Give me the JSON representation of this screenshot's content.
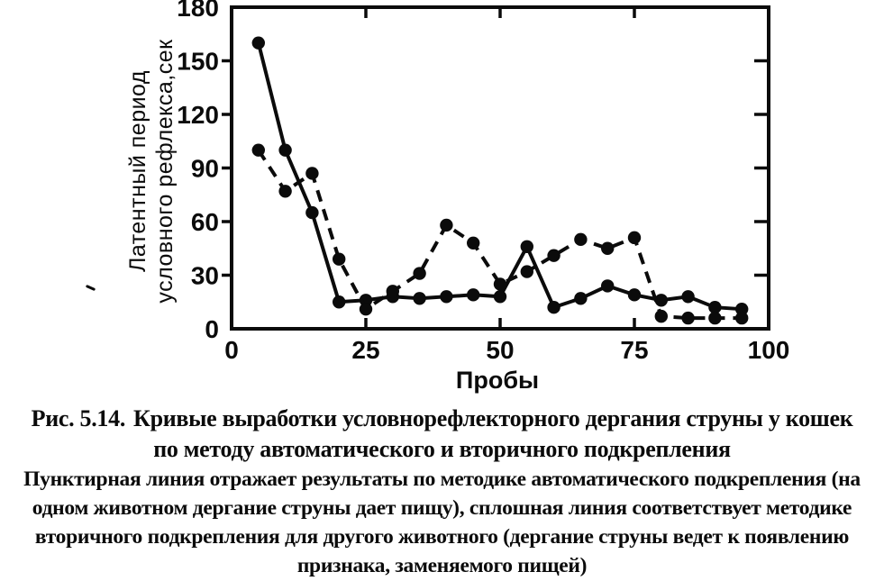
{
  "chart_data": {
    "type": "line",
    "title": "",
    "xlabel": "Пробы",
    "ylabel": "Латентный период условного рефлекса,сек",
    "ylabel_lines": [
      "Латентный период",
      "условного рефлекса,сек"
    ],
    "xlim": [
      0,
      100
    ],
    "ylim": [
      0,
      180
    ],
    "x_ticks": [
      0,
      25,
      50,
      75,
      100
    ],
    "y_ticks": [
      0,
      30,
      60,
      90,
      120,
      150,
      180
    ],
    "grid": false,
    "legend_position": "none",
    "marker": "filled-circle",
    "line_color": "#0b0b0b",
    "series": [
      {
        "name": "сплошная линия — вторичное подкрепление",
        "style": "solid",
        "x": [
          5,
          10,
          15,
          20,
          25,
          30,
          35,
          40,
          45,
          50,
          55,
          60,
          65,
          70,
          75,
          80,
          85,
          90,
          95
        ],
        "y": [
          160,
          100,
          65,
          15,
          16,
          18,
          17,
          18,
          19,
          18,
          46,
          12,
          17,
          24,
          19,
          16,
          18,
          12,
          11
        ]
      },
      {
        "name": "пунктирная линия — автоматическое подкрепление",
        "style": "dashed",
        "x": [
          5,
          10,
          15,
          20,
          25,
          30,
          35,
          40,
          45,
          50,
          55,
          60,
          65,
          70,
          75,
          80,
          85,
          90,
          95
        ],
        "y": [
          100,
          77,
          87,
          39,
          11,
          21,
          31,
          58,
          48,
          25,
          32,
          41,
          50,
          45,
          51,
          7,
          6,
          6,
          6
        ]
      }
    ]
  },
  "caption": {
    "figure_label": "Рис. 5.14.",
    "title_line1": "Кривые выработки условнорефлекторного дергания струны у кошек",
    "title_line2": "по методу автоматического и вторичного подкрепления",
    "body_lines": [
      "Пунктирная линия отражает результаты по методике автоматического подкрепления (на",
      "одном животном дергание струны дает пищу), сплошная линия соответствует методике",
      "вторичного подкрепления для другого животного (дергание струны ведет к появлению",
      "признака, заменяемого пищей)"
    ]
  }
}
